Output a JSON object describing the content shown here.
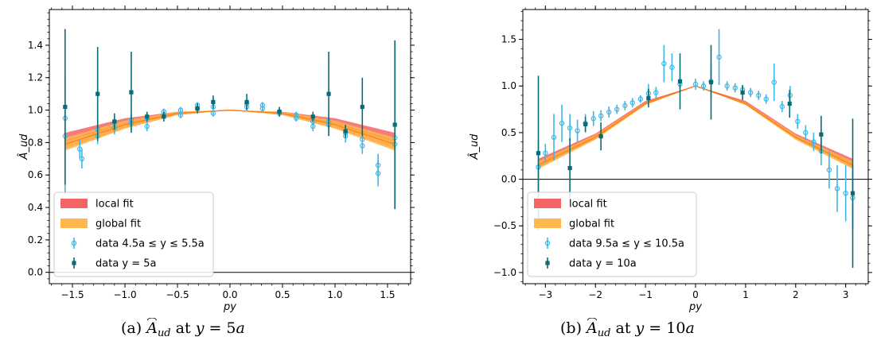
{
  "chart_data": [
    {
      "type": "scatter",
      "xlabel": "py",
      "ylabel": "Â_ud",
      "xlim": [
        -1.72,
        1.72
      ],
      "ylim": [
        -0.07,
        1.62
      ],
      "xticks": [
        -1.5,
        -1.0,
        -0.5,
        0.0,
        0.5,
        1.0,
        1.5
      ],
      "xtick_labels": [
        "−1.5",
        "−1.0",
        "−0.5",
        "0.0",
        "0.5",
        "1.0",
        "1.5"
      ],
      "yticks": [
        0.0,
        0.2,
        0.4,
        0.6,
        0.8,
        1.0,
        1.2,
        1.4
      ],
      "ytick_labels": [
        "0.0",
        "0.2",
        "0.4",
        "0.6",
        "0.8",
        "1.0",
        "1.2",
        "1.4"
      ],
      "hline": 0.0,
      "fits": {
        "local": {
          "label": "local fit",
          "color": "#f46464",
          "center": [
            [
              -1.57,
              0.81
            ],
            [
              -1.0,
              0.92
            ],
            [
              -0.5,
              0.98
            ],
            [
              0.0,
              1.0
            ],
            [
              0.5,
              0.98
            ],
            [
              1.0,
              0.92
            ],
            [
              1.57,
              0.81
            ]
          ],
          "halfwidth": [
            0.05,
            0.03,
            0.01,
            0.0,
            0.01,
            0.03,
            0.05
          ]
        },
        "global": {
          "label": "global fit",
          "color": "#ffb84d",
          "center": [
            [
              -1.57,
              0.79
            ],
            [
              -1.0,
              0.91
            ],
            [
              -0.5,
              0.98
            ],
            [
              0.0,
              1.0
            ],
            [
              0.5,
              0.98
            ],
            [
              1.0,
              0.91
            ],
            [
              1.57,
              0.79
            ]
          ],
          "halfwidth": [
            0.04,
            0.025,
            0.01,
            0.0,
            0.01,
            0.025,
            0.04
          ]
        }
      },
      "series": [
        {
          "name": "data 4.5a ≤ y ≤ 5.5a",
          "marker": "circle",
          "color": "#3fb7e6",
          "points": [
            [
              -1.57,
              0.95,
              0.12
            ],
            [
              -1.57,
              0.84,
              0.36
            ],
            [
              -1.43,
              0.76,
              0.06
            ],
            [
              -1.41,
              0.7,
              0.06
            ],
            [
              -1.26,
              0.84,
              0.05
            ],
            [
              -1.26,
              0.88,
              0.04
            ],
            [
              -1.1,
              0.89,
              0.04
            ],
            [
              -1.1,
              0.92,
              0.03
            ],
            [
              -0.94,
              0.92,
              0.03
            ],
            [
              -0.94,
              0.94,
              0.03
            ],
            [
              -0.79,
              0.9,
              0.03
            ],
            [
              -0.79,
              0.95,
              0.02
            ],
            [
              -0.63,
              0.97,
              0.02
            ],
            [
              -0.63,
              0.99,
              0.02
            ],
            [
              -0.47,
              0.97,
              0.02
            ],
            [
              -0.47,
              1.0,
              0.02
            ],
            [
              -0.31,
              1.01,
              0.03
            ],
            [
              -0.31,
              1.03,
              0.02
            ],
            [
              -0.16,
              0.98,
              0.02
            ],
            [
              -0.16,
              1.02,
              0.02
            ],
            [
              0.16,
              1.02,
              0.02
            ],
            [
              0.16,
              1.04,
              0.02
            ],
            [
              0.31,
              1.01,
              0.02
            ],
            [
              0.31,
              1.03,
              0.02
            ],
            [
              0.47,
              0.99,
              0.02
            ],
            [
              0.47,
              0.98,
              0.02
            ],
            [
              0.63,
              0.95,
              0.02
            ],
            [
              0.63,
              0.97,
              0.02
            ],
            [
              0.79,
              0.9,
              0.03
            ],
            [
              0.79,
              0.93,
              0.03
            ],
            [
              0.94,
              0.91,
              0.03
            ],
            [
              0.94,
              0.93,
              0.03
            ],
            [
              1.1,
              0.84,
              0.04
            ],
            [
              1.1,
              0.86,
              0.04
            ],
            [
              1.26,
              0.78,
              0.05
            ],
            [
              1.26,
              0.82,
              0.05
            ],
            [
              1.41,
              0.61,
              0.08
            ],
            [
              1.41,
              0.66,
              0.07
            ],
            [
              1.57,
              0.79,
              0.06
            ],
            [
              1.57,
              0.83,
              0.06
            ]
          ]
        },
        {
          "name": "data y = 5a",
          "marker": "square",
          "color": "#0b6b75",
          "points": [
            [
              -1.57,
              1.02,
              0.48
            ],
            [
              -1.26,
              1.1,
              0.29
            ],
            [
              -1.1,
              0.93,
              0.05
            ],
            [
              -0.94,
              1.11,
              0.25
            ],
            [
              -0.79,
              0.96,
              0.03
            ],
            [
              -0.63,
              0.96,
              0.03
            ],
            [
              -0.31,
              1.01,
              0.03
            ],
            [
              -0.16,
              1.05,
              0.04
            ],
            [
              0.16,
              1.05,
              0.05
            ],
            [
              0.47,
              0.99,
              0.03
            ],
            [
              0.79,
              0.96,
              0.03
            ],
            [
              0.94,
              1.1,
              0.26
            ],
            [
              1.1,
              0.87,
              0.04
            ],
            [
              1.26,
              1.02,
              0.18
            ],
            [
              1.57,
              0.91,
              0.52
            ]
          ]
        }
      ],
      "legend": {
        "position": "lower-left",
        "entries": [
          "local fit",
          "global fit",
          "data 4.5a ≤ y ≤ 5.5a",
          "data y = 5a"
        ]
      }
    },
    {
      "type": "scatter",
      "xlabel": "py",
      "ylabel": "Â_ud",
      "xlim": [
        -3.45,
        3.45
      ],
      "ylim": [
        -1.12,
        1.82
      ],
      "xticks": [
        -3,
        -2,
        -1,
        0,
        1,
        2,
        3
      ],
      "xtick_labels": [
        "−3",
        "−2",
        "−1",
        "0",
        "1",
        "2",
        "3"
      ],
      "yticks": [
        -1.0,
        -0.5,
        0.0,
        0.5,
        1.0,
        1.5
      ],
      "ytick_labels": [
        "−1.0",
        "−0.5",
        "0.0",
        "0.5",
        "1.0",
        "1.5"
      ],
      "hline": 0.0,
      "fits": {
        "local": {
          "label": "local fit",
          "color": "#f46464",
          "center": [
            [
              -3.14,
              0.17
            ],
            [
              -2.0,
              0.46
            ],
            [
              -1.0,
              0.82
            ],
            [
              0.0,
              1.0
            ],
            [
              1.0,
              0.82
            ],
            [
              2.0,
              0.46
            ],
            [
              3.14,
              0.17
            ]
          ],
          "halfwidth": [
            0.05,
            0.03,
            0.02,
            0.0,
            0.02,
            0.03,
            0.05
          ]
        },
        "global": {
          "label": "global fit",
          "color": "#ffb84d",
          "center": [
            [
              -3.14,
              0.15
            ],
            [
              -2.0,
              0.45
            ],
            [
              -1.0,
              0.81
            ],
            [
              0.0,
              1.0
            ],
            [
              1.0,
              0.81
            ],
            [
              2.0,
              0.45
            ],
            [
              3.14,
              0.15
            ]
          ],
          "halfwidth": [
            0.04,
            0.025,
            0.015,
            0.0,
            0.015,
            0.025,
            0.04
          ]
        }
      },
      "series": [
        {
          "name": "data 9.5a ≤ y ≤ 10.5a",
          "marker": "circle",
          "color": "#3fb7e6",
          "points": [
            [
              -3.14,
              0.13,
              0.3
            ],
            [
              -3.0,
              0.28,
              0.1
            ],
            [
              -2.83,
              0.45,
              0.25
            ],
            [
              -2.67,
              0.6,
              0.2
            ],
            [
              -2.51,
              0.55,
              0.15
            ],
            [
              -2.36,
              0.52,
              0.12
            ],
            [
              -2.2,
              0.6,
              0.1
            ],
            [
              -2.04,
              0.65,
              0.08
            ],
            [
              -1.89,
              0.68,
              0.06
            ],
            [
              -1.73,
              0.72,
              0.06
            ],
            [
              -1.57,
              0.75,
              0.05
            ],
            [
              -1.41,
              0.79,
              0.05
            ],
            [
              -1.26,
              0.82,
              0.05
            ],
            [
              -1.1,
              0.86,
              0.04
            ],
            [
              -0.94,
              0.92,
              0.1
            ],
            [
              -0.79,
              0.93,
              0.06
            ],
            [
              -0.63,
              1.24,
              0.2
            ],
            [
              -0.47,
              1.2,
              0.15
            ],
            [
              -0.31,
              1.02,
              0.05
            ],
            [
              0.0,
              1.02,
              0.06
            ],
            [
              0.16,
              1.0,
              0.05
            ],
            [
              0.31,
              1.05,
              0.18
            ],
            [
              0.47,
              1.31,
              0.3
            ],
            [
              0.63,
              1.0,
              0.05
            ],
            [
              0.79,
              0.98,
              0.05
            ],
            [
              0.94,
              0.96,
              0.05
            ],
            [
              1.1,
              0.93,
              0.05
            ],
            [
              1.26,
              0.9,
              0.05
            ],
            [
              1.41,
              0.86,
              0.05
            ],
            [
              1.57,
              1.04,
              0.2
            ],
            [
              1.73,
              0.78,
              0.06
            ],
            [
              1.89,
              0.9,
              0.1
            ],
            [
              2.04,
              0.62,
              0.08
            ],
            [
              2.2,
              0.5,
              0.08
            ],
            [
              2.36,
              0.4,
              0.1
            ],
            [
              2.51,
              0.3,
              0.15
            ],
            [
              2.67,
              0.1,
              0.2
            ],
            [
              2.83,
              -0.1,
              0.25
            ],
            [
              3.0,
              -0.15,
              0.3
            ],
            [
              3.14,
              -0.2,
              0.35
            ]
          ]
        },
        {
          "name": "data y = 10a",
          "marker": "square",
          "color": "#0b6b75",
          "points": [
            [
              -3.14,
              0.28,
              0.83
            ],
            [
              -2.51,
              0.12,
              0.32
            ],
            [
              -2.2,
              0.59,
              0.08
            ],
            [
              -1.89,
              0.46,
              0.15
            ],
            [
              -0.94,
              0.87,
              0.1
            ],
            [
              -0.31,
              1.05,
              0.3
            ],
            [
              0.31,
              1.04,
              0.4
            ],
            [
              0.94,
              0.93,
              0.08
            ],
            [
              1.88,
              0.81,
              0.15
            ],
            [
              2.51,
              0.48,
              0.2
            ],
            [
              3.14,
              -0.15,
              0.8
            ]
          ]
        }
      ],
      "legend": {
        "position": "lower-left",
        "entries": [
          "local fit",
          "global fit",
          "data 9.5a ≤ y ≤ 10.5a",
          "data y = 10a"
        ]
      }
    }
  ],
  "captions": [
    {
      "prefix": "(a) ",
      "symbol": "A",
      "sub": "ud",
      "mid": " at ",
      "var": "y",
      "eq": " = 5",
      "unit": "a"
    },
    {
      "prefix": "(b) ",
      "symbol": "A",
      "sub": "ud",
      "mid": " at ",
      "var": "y",
      "eq": " = 10",
      "unit": "a"
    }
  ]
}
